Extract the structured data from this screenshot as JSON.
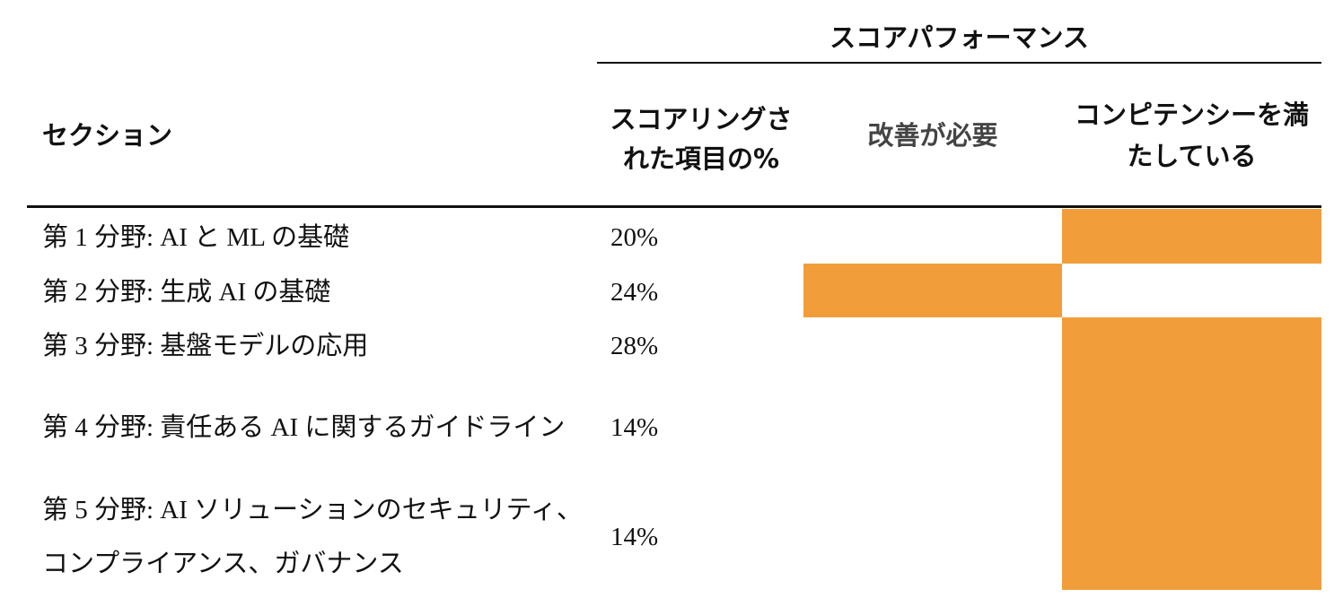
{
  "header": {
    "group": "スコアパフォーマンス",
    "columns": [
      "セクション",
      "スコアリングされた項目の%",
      "改善が必要",
      "コンピテンシーを満たしている"
    ]
  },
  "table": {
    "rows": [
      [
        "第 1 分野: AI と ML の基礎",
        "20%"
      ],
      [
        "第 2 分野: 生成 AI の基礎",
        "24%"
      ],
      [
        "第 3 分野: 基盤モデルの応用",
        "28%"
      ],
      [
        "第 4 分野: 責任ある AI に関するガイドライン",
        "14%"
      ],
      [
        "第 5 分野: AI ソリューションのセキュリティ、コンプライアンス、ガバナンス",
        "14%"
      ]
    ]
  }
}
